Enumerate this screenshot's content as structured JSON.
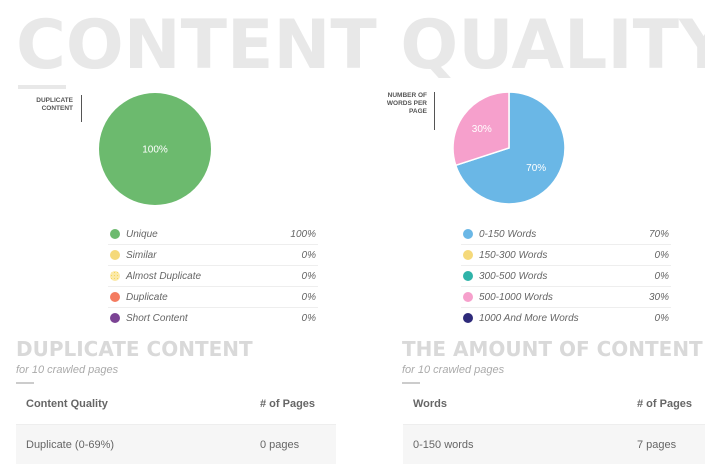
{
  "page_title": "CONTENT QUALITY",
  "colors": {
    "unique": "#6cba6e",
    "similar": "#f5d97a",
    "almost_duplicate": "#f5d65a",
    "duplicate": "#f47b60",
    "short_content": "#7b4394",
    "w0_150": "#6ab7e6",
    "w150_300": "#f5d97a",
    "w300_500": "#2fb3a9",
    "w500_1000": "#f6a0cc",
    "w1000": "#2e2a7a"
  },
  "chart_data": [
    {
      "type": "pie",
      "ylabel": "DUPLICATE CONTENT",
      "slices": [
        {
          "label": "Unique",
          "value": 100,
          "display": "100%",
          "color": "#6cba6e",
          "show_label": true
        },
        {
          "label": "Similar",
          "value": 0,
          "display": "0%",
          "color": "#f5d97a"
        },
        {
          "label": "Almost Duplicate",
          "value": 0,
          "display": "0%",
          "color": "#f5d65a"
        },
        {
          "label": "Duplicate",
          "value": 0,
          "display": "0%",
          "color": "#f47b60"
        },
        {
          "label": "Short Content",
          "value": 0,
          "display": "0%",
          "color": "#7b4394"
        }
      ]
    },
    {
      "type": "pie",
      "ylabel": "NUMBER OF WORDS PER PAGE",
      "slices": [
        {
          "label": "0-150 Words",
          "value": 70,
          "display": "70%",
          "color": "#6ab7e6",
          "show_label": true
        },
        {
          "label": "150-300 Words",
          "value": 0,
          "display": "0%",
          "color": "#f5d97a"
        },
        {
          "label": "300-500 Words",
          "value": 0,
          "display": "0%",
          "color": "#2fb3a9"
        },
        {
          "label": "500-1000 Words",
          "value": 30,
          "display": "30%",
          "color": "#f6a0cc",
          "show_label": true
        },
        {
          "label": "1000 And More Words",
          "value": 0,
          "display": "0%",
          "color": "#2e2a7a"
        }
      ]
    }
  ],
  "duplicate_section": {
    "title": "DUPLICATE CONTENT",
    "subtitle": "for 10 crawled pages",
    "table": {
      "headers": [
        "Content Quality",
        "# of Pages"
      ],
      "rows": [
        [
          "Duplicate (0-69%)",
          "0 pages"
        ]
      ]
    }
  },
  "amount_section": {
    "title": "THE AMOUNT OF CONTENT",
    "subtitle": "for 10 crawled pages",
    "table": {
      "headers": [
        "Words",
        "# of Pages"
      ],
      "rows": [
        [
          "0-150 words",
          "7 pages"
        ]
      ]
    }
  }
}
